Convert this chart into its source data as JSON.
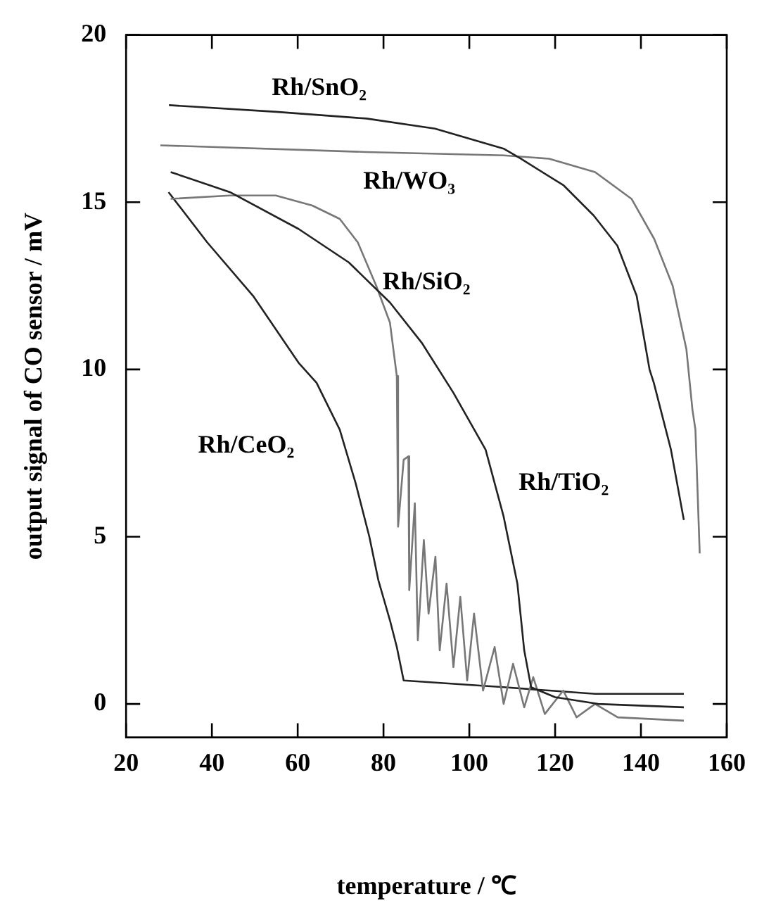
{
  "chart_data": {
    "type": "line",
    "xlabel": "temperature / ℃",
    "ylabel": "output signal of CO sensor / mV",
    "xlim": [
      20,
      160
    ],
    "ylim": [
      -1,
      20
    ],
    "xticks": [
      20,
      40,
      60,
      80,
      100,
      120,
      140,
      160
    ],
    "yticks": [
      0,
      5,
      10,
      15,
      20
    ],
    "series": [
      {
        "name": "Rh/SnO₂",
        "color": "#222222",
        "x": [
          30,
          55,
          76,
          92,
          108,
          112,
          122,
          129,
          134.5,
          139,
          142,
          143,
          147,
          150
        ],
        "values": [
          17.9,
          17.7,
          17.5,
          17.2,
          16.6,
          16.3,
          15.5,
          14.6,
          13.7,
          12.2,
          10,
          9.6,
          7.6,
          5.5
        ]
      },
      {
        "name": "Rh/WO₃",
        "color": "#777777",
        "x": [
          28,
          76,
          108,
          118.6,
          129.3,
          137.8,
          143.1,
          147.4,
          150.6,
          152,
          152.7,
          153.7
        ],
        "values": [
          16.7,
          16.5,
          16.4,
          16.3,
          15.9,
          15.1,
          13.9,
          12.5,
          10.6,
          8.8,
          8.2,
          4.5
        ]
      },
      {
        "name": "Rh/TiO₂",
        "color": "#222222",
        "x": [
          30.4,
          44.2,
          60.2,
          71.9,
          81.5,
          88.9,
          96.3,
          103.8,
          108,
          111.2,
          112.8,
          114.4,
          120,
          130,
          150
        ],
        "values": [
          15.9,
          15.3,
          14.2,
          13.2,
          12,
          10.8,
          9.3,
          7.6,
          5.6,
          3.6,
          1.6,
          0.5,
          0.2,
          0,
          -0.1
        ]
      },
      {
        "name": "Rh/SiO₂",
        "color": "#777777",
        "x": [
          30.4,
          44.2,
          54.9,
          63.4,
          69.8,
          74,
          78.3,
          81.5,
          83.1,
          83.4,
          84.7,
          85.8,
          86,
          87.3,
          88,
          89.4,
          90.5,
          92.1,
          93.1,
          94.7,
          96.3,
          97.9,
          99.5,
          101.1,
          103.2,
          105.9,
          108,
          110.2,
          112.8,
          114.9,
          117.6,
          121.9,
          125,
          129.3,
          134.6,
          150
        ],
        "values": [
          15.1,
          15.2,
          15.2,
          14.9,
          14.5,
          13.8,
          12.5,
          11.4,
          9.8,
          5.3,
          7.3,
          7.4,
          3.4,
          6,
          1.9,
          4.9,
          2.7,
          4.4,
          1.6,
          3.6,
          1.1,
          3.2,
          0.7,
          2.7,
          0.4,
          1.7,
          0,
          1.2,
          -0.1,
          0.8,
          -0.3,
          0.4,
          -0.4,
          0,
          -0.4,
          -0.5
        ]
      },
      {
        "name": "Rh/CeO₂",
        "color": "#222222",
        "x": [
          29.9,
          38.9,
          49.6,
          60.2,
          64.4,
          69.8,
          73.5,
          76.7,
          78.8,
          81.5,
          83.1,
          84.7,
          108,
          118.6,
          129.3,
          150
        ],
        "values": [
          15.3,
          13.8,
          12.2,
          10.2,
          9.6,
          8.2,
          6.6,
          5,
          3.7,
          2.5,
          1.7,
          0.7,
          0.5,
          0.4,
          0.3,
          0.3
        ]
      }
    ]
  }
}
